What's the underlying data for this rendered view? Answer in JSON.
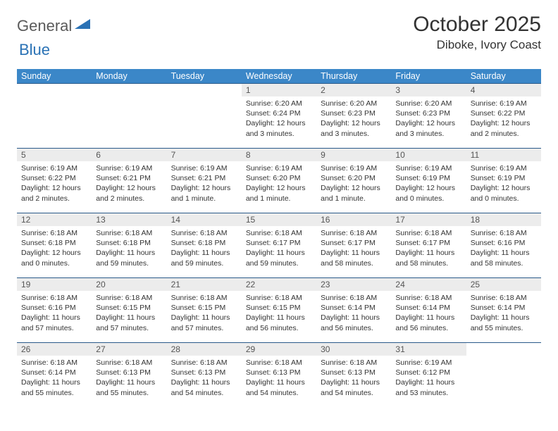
{
  "brand": {
    "text_gray": "General",
    "text_blue": "Blue"
  },
  "title": "October 2025",
  "location": "Diboke, Ivory Coast",
  "colors": {
    "header_bg": "#3b87c8",
    "header_text": "#ffffff",
    "daynum_bg": "#ececec",
    "border": "#2a5a8a",
    "brand_gray": "#5a5a5a",
    "brand_blue": "#2a72b5"
  },
  "days_of_week": [
    "Sunday",
    "Monday",
    "Tuesday",
    "Wednesday",
    "Thursday",
    "Friday",
    "Saturday"
  ],
  "weeks": [
    [
      {
        "n": "",
        "sr": "",
        "ss": "",
        "dl": ""
      },
      {
        "n": "",
        "sr": "",
        "ss": "",
        "dl": ""
      },
      {
        "n": "",
        "sr": "",
        "ss": "",
        "dl": ""
      },
      {
        "n": "1",
        "sr": "Sunrise: 6:20 AM",
        "ss": "Sunset: 6:24 PM",
        "dl": "Daylight: 12 hours and 3 minutes."
      },
      {
        "n": "2",
        "sr": "Sunrise: 6:20 AM",
        "ss": "Sunset: 6:23 PM",
        "dl": "Daylight: 12 hours and 3 minutes."
      },
      {
        "n": "3",
        "sr": "Sunrise: 6:20 AM",
        "ss": "Sunset: 6:23 PM",
        "dl": "Daylight: 12 hours and 3 minutes."
      },
      {
        "n": "4",
        "sr": "Sunrise: 6:19 AM",
        "ss": "Sunset: 6:22 PM",
        "dl": "Daylight: 12 hours and 2 minutes."
      }
    ],
    [
      {
        "n": "5",
        "sr": "Sunrise: 6:19 AM",
        "ss": "Sunset: 6:22 PM",
        "dl": "Daylight: 12 hours and 2 minutes."
      },
      {
        "n": "6",
        "sr": "Sunrise: 6:19 AM",
        "ss": "Sunset: 6:21 PM",
        "dl": "Daylight: 12 hours and 2 minutes."
      },
      {
        "n": "7",
        "sr": "Sunrise: 6:19 AM",
        "ss": "Sunset: 6:21 PM",
        "dl": "Daylight: 12 hours and 1 minute."
      },
      {
        "n": "8",
        "sr": "Sunrise: 6:19 AM",
        "ss": "Sunset: 6:20 PM",
        "dl": "Daylight: 12 hours and 1 minute."
      },
      {
        "n": "9",
        "sr": "Sunrise: 6:19 AM",
        "ss": "Sunset: 6:20 PM",
        "dl": "Daylight: 12 hours and 1 minute."
      },
      {
        "n": "10",
        "sr": "Sunrise: 6:19 AM",
        "ss": "Sunset: 6:19 PM",
        "dl": "Daylight: 12 hours and 0 minutes."
      },
      {
        "n": "11",
        "sr": "Sunrise: 6:19 AM",
        "ss": "Sunset: 6:19 PM",
        "dl": "Daylight: 12 hours and 0 minutes."
      }
    ],
    [
      {
        "n": "12",
        "sr": "Sunrise: 6:18 AM",
        "ss": "Sunset: 6:18 PM",
        "dl": "Daylight: 12 hours and 0 minutes."
      },
      {
        "n": "13",
        "sr": "Sunrise: 6:18 AM",
        "ss": "Sunset: 6:18 PM",
        "dl": "Daylight: 11 hours and 59 minutes."
      },
      {
        "n": "14",
        "sr": "Sunrise: 6:18 AM",
        "ss": "Sunset: 6:18 PM",
        "dl": "Daylight: 11 hours and 59 minutes."
      },
      {
        "n": "15",
        "sr": "Sunrise: 6:18 AM",
        "ss": "Sunset: 6:17 PM",
        "dl": "Daylight: 11 hours and 59 minutes."
      },
      {
        "n": "16",
        "sr": "Sunrise: 6:18 AM",
        "ss": "Sunset: 6:17 PM",
        "dl": "Daylight: 11 hours and 58 minutes."
      },
      {
        "n": "17",
        "sr": "Sunrise: 6:18 AM",
        "ss": "Sunset: 6:17 PM",
        "dl": "Daylight: 11 hours and 58 minutes."
      },
      {
        "n": "18",
        "sr": "Sunrise: 6:18 AM",
        "ss": "Sunset: 6:16 PM",
        "dl": "Daylight: 11 hours and 58 minutes."
      }
    ],
    [
      {
        "n": "19",
        "sr": "Sunrise: 6:18 AM",
        "ss": "Sunset: 6:16 PM",
        "dl": "Daylight: 11 hours and 57 minutes."
      },
      {
        "n": "20",
        "sr": "Sunrise: 6:18 AM",
        "ss": "Sunset: 6:15 PM",
        "dl": "Daylight: 11 hours and 57 minutes."
      },
      {
        "n": "21",
        "sr": "Sunrise: 6:18 AM",
        "ss": "Sunset: 6:15 PM",
        "dl": "Daylight: 11 hours and 57 minutes."
      },
      {
        "n": "22",
        "sr": "Sunrise: 6:18 AM",
        "ss": "Sunset: 6:15 PM",
        "dl": "Daylight: 11 hours and 56 minutes."
      },
      {
        "n": "23",
        "sr": "Sunrise: 6:18 AM",
        "ss": "Sunset: 6:14 PM",
        "dl": "Daylight: 11 hours and 56 minutes."
      },
      {
        "n": "24",
        "sr": "Sunrise: 6:18 AM",
        "ss": "Sunset: 6:14 PM",
        "dl": "Daylight: 11 hours and 56 minutes."
      },
      {
        "n": "25",
        "sr": "Sunrise: 6:18 AM",
        "ss": "Sunset: 6:14 PM",
        "dl": "Daylight: 11 hours and 55 minutes."
      }
    ],
    [
      {
        "n": "26",
        "sr": "Sunrise: 6:18 AM",
        "ss": "Sunset: 6:14 PM",
        "dl": "Daylight: 11 hours and 55 minutes."
      },
      {
        "n": "27",
        "sr": "Sunrise: 6:18 AM",
        "ss": "Sunset: 6:13 PM",
        "dl": "Daylight: 11 hours and 55 minutes."
      },
      {
        "n": "28",
        "sr": "Sunrise: 6:18 AM",
        "ss": "Sunset: 6:13 PM",
        "dl": "Daylight: 11 hours and 54 minutes."
      },
      {
        "n": "29",
        "sr": "Sunrise: 6:18 AM",
        "ss": "Sunset: 6:13 PM",
        "dl": "Daylight: 11 hours and 54 minutes."
      },
      {
        "n": "30",
        "sr": "Sunrise: 6:18 AM",
        "ss": "Sunset: 6:13 PM",
        "dl": "Daylight: 11 hours and 54 minutes."
      },
      {
        "n": "31",
        "sr": "Sunrise: 6:19 AM",
        "ss": "Sunset: 6:12 PM",
        "dl": "Daylight: 11 hours and 53 minutes."
      },
      {
        "n": "",
        "sr": "",
        "ss": "",
        "dl": ""
      }
    ]
  ]
}
